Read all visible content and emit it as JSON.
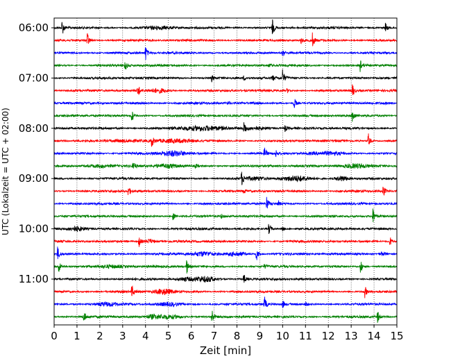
{
  "chart_data": {
    "type": "line",
    "subtype": "helicorder-seismogram",
    "xlabel": "Zeit  [min]",
    "ylabel": "UTC (Lokalzeit = UTC + 02:00)",
    "xlim": [
      0,
      15
    ],
    "x_ticks": [
      0,
      1,
      2,
      3,
      4,
      5,
      6,
      7,
      8,
      9,
      10,
      11,
      12,
      13,
      14,
      15
    ],
    "x_tick_labels": [
      "0",
      "1",
      "2",
      "3",
      "4",
      "5",
      "6",
      "7",
      "8",
      "9",
      "10",
      "11",
      "12",
      "13",
      "14",
      "15"
    ],
    "y_tick_labels": [
      "06:00",
      "07:00",
      "08:00",
      "09:00",
      "10:00",
      "11:00"
    ],
    "y_tick_row_index": [
      0,
      4,
      8,
      12,
      16,
      20
    ],
    "trace_count": 24,
    "trace_minutes": 15,
    "grid": {
      "vertical_dotted": true,
      "horizontal": false
    },
    "trace_colors": [
      "#000000",
      "#ff0000",
      "#0000ff",
      "#008000"
    ],
    "events": [
      [
        [
          0.35,
          1.0,
          0.1
        ],
        [
          9.55,
          1.0,
          0.1
        ],
        [
          4.6,
          0.25,
          0.6
        ],
        [
          14.5,
          0.6,
          0.1
        ]
      ],
      [
        [
          1.45,
          1.0,
          0.1
        ],
        [
          11.3,
          0.9,
          0.1
        ],
        [
          10.8,
          0.4,
          0.1
        ]
      ],
      [
        [
          4.0,
          0.9,
          0.1
        ],
        [
          10.0,
          0.4,
          0.1
        ]
      ],
      [
        [
          3.1,
          0.8,
          0.1
        ],
        [
          13.4,
          0.8,
          0.1
        ],
        [
          9.4,
          0.3,
          0.1
        ]
      ],
      [
        [
          10.0,
          1.0,
          0.1
        ],
        [
          9.55,
          0.4,
          0.1
        ],
        [
          6.9,
          0.4,
          0.1
        ],
        [
          8.3,
          0.3,
          0.1
        ]
      ],
      [
        [
          3.65,
          1.0,
          0.1
        ],
        [
          4.6,
          0.4,
          0.4
        ],
        [
          13.05,
          0.9,
          0.1
        ],
        [
          10.2,
          0.3,
          0.1
        ]
      ],
      [
        [
          10.5,
          0.8,
          0.1
        ],
        [
          7.6,
          0.25,
          0.1
        ]
      ],
      [
        [
          3.4,
          0.8,
          0.1
        ],
        [
          13.05,
          0.9,
          0.1
        ]
      ],
      [
        [
          8.3,
          1.0,
          0.1
        ],
        [
          6.5,
          0.4,
          1.0
        ],
        [
          8.9,
          0.3,
          0.5
        ],
        [
          10.1,
          0.4,
          0.1
        ]
      ],
      [
        [
          4.25,
          0.9,
          0.1
        ],
        [
          13.75,
          0.9,
          0.1
        ],
        [
          3.1,
          0.25,
          0.8
        ],
        [
          5.4,
          0.3,
          0.8
        ]
      ],
      [
        [
          9.2,
          0.8,
          0.1
        ],
        [
          5.2,
          0.5,
          0.6
        ],
        [
          9.7,
          0.4,
          0.1
        ],
        [
          12.0,
          0.25,
          0.8
        ]
      ],
      [
        [
          3.45,
          0.8,
          0.1
        ],
        [
          4.9,
          0.35,
          0.5
        ],
        [
          13.2,
          0.45,
          0.6
        ],
        [
          2.0,
          0.3,
          0.6
        ],
        [
          6.2,
          0.3,
          0.1
        ]
      ],
      [
        [
          8.2,
          0.9,
          0.1
        ],
        [
          10.6,
          0.45,
          0.6
        ],
        [
          12.6,
          0.5,
          0.3
        ],
        [
          8.8,
          0.3,
          0.4
        ]
      ],
      [
        [
          3.25,
          0.7,
          0.1
        ],
        [
          14.4,
          0.8,
          0.1
        ],
        [
          8.3,
          0.3,
          0.1
        ]
      ],
      [
        [
          9.3,
          0.9,
          0.1
        ],
        [
          9.8,
          0.4,
          0.1
        ]
      ],
      [
        [
          5.2,
          0.7,
          0.1
        ],
        [
          13.95,
          0.9,
          0.1
        ],
        [
          7.3,
          0.3,
          0.1
        ]
      ],
      [
        [
          9.4,
          0.8,
          0.1
        ],
        [
          1.0,
          0.4,
          0.3
        ],
        [
          10.0,
          0.3,
          0.1
        ]
      ],
      [
        [
          3.7,
          0.8,
          0.1
        ],
        [
          4.2,
          0.4,
          0.2
        ],
        [
          14.7,
          0.6,
          0.1
        ]
      ],
      [
        [
          0.15,
          0.8,
          0.1
        ],
        [
          8.85,
          0.9,
          0.1
        ],
        [
          6.5,
          0.4,
          0.5
        ],
        [
          8.0,
          0.35,
          0.4
        ],
        [
          14.4,
          0.3,
          0.2
        ]
      ],
      [
        [
          0.2,
          0.8,
          0.1
        ],
        [
          5.8,
          0.9,
          0.1
        ],
        [
          13.4,
          0.9,
          0.1
        ],
        [
          2.5,
          0.3,
          0.6
        ],
        [
          9.2,
          0.3,
          0.1
        ]
      ],
      [
        [
          8.3,
          0.7,
          0.1
        ],
        [
          6.6,
          0.5,
          0.5
        ],
        [
          5.7,
          0.3,
          0.3
        ]
      ],
      [
        [
          3.4,
          0.8,
          0.1
        ],
        [
          4.8,
          0.55,
          0.4
        ],
        [
          13.6,
          0.7,
          0.1
        ]
      ],
      [
        [
          9.2,
          1.0,
          0.1
        ],
        [
          10.0,
          0.5,
          0.1
        ],
        [
          2.3,
          0.3,
          0.5
        ],
        [
          5.0,
          0.3,
          0.5
        ],
        [
          11.0,
          0.3,
          0.1
        ]
      ],
      [
        [
          1.3,
          0.8,
          0.1
        ],
        [
          6.9,
          1.0,
          0.1
        ],
        [
          14.15,
          0.8,
          0.1
        ],
        [
          5.0,
          0.35,
          0.6
        ],
        [
          4.3,
          0.3,
          0.3
        ]
      ]
    ]
  }
}
